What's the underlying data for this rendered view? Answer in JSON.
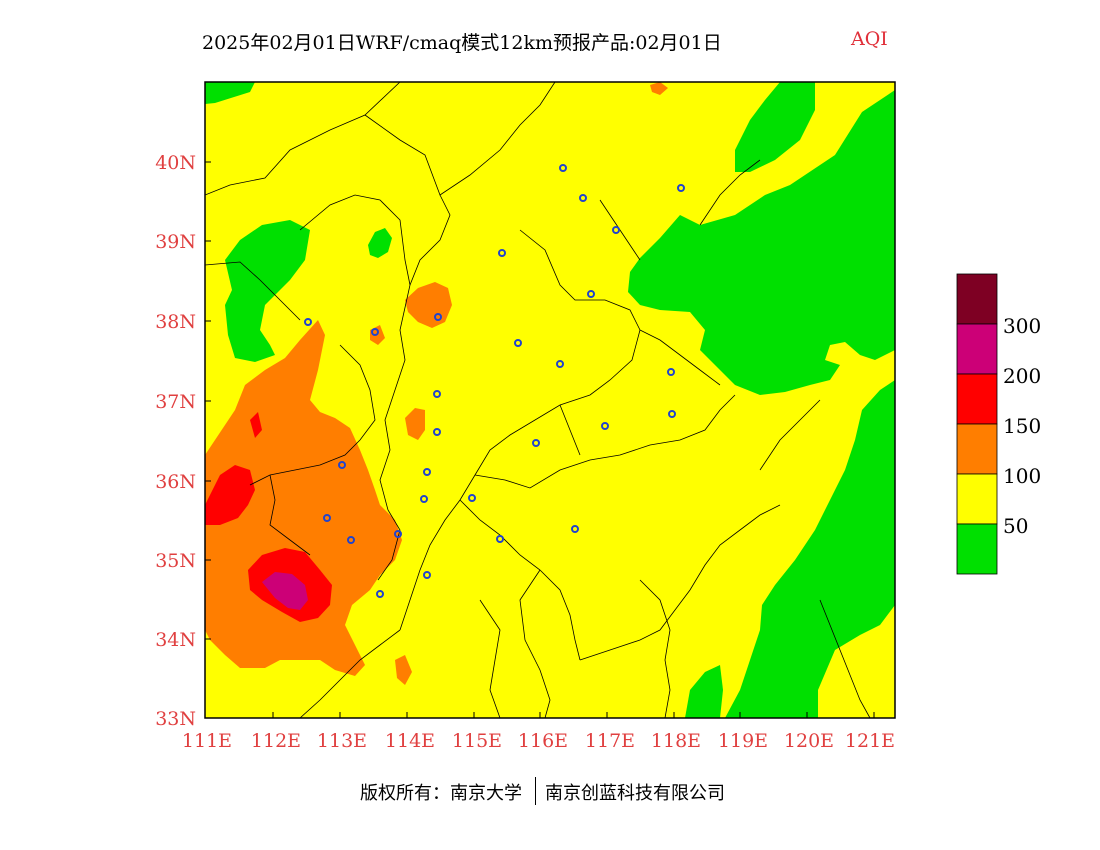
{
  "title": {
    "main": "2025年02月01日WRF/cmaq模式12km预报产品:02月01日",
    "variable": "AQI"
  },
  "map": {
    "x_axis_labels": [
      "111E",
      "112E",
      "113E",
      "114E",
      "115E",
      "116E",
      "117E",
      "118E",
      "119E",
      "120E",
      "121E"
    ],
    "y_axis_labels": [
      "33N",
      "34N",
      "35N",
      "36N",
      "37N",
      "38N",
      "39N",
      "40N"
    ],
    "lon_range": [
      111,
      121.4
    ],
    "lat_range": [
      33,
      41
    ]
  },
  "legend": {
    "labels": [
      "50",
      "100",
      "150",
      "200",
      "300"
    ],
    "colors": {
      "good": "#00e000",
      "moderate": "#ffff00",
      "sensitive": "#ff7e00",
      "unhealthy": "#ff0000",
      "very_unhealthy": "#cc0077",
      "hazardous": "#7e0023"
    }
  },
  "footer": {
    "copyright": "版权所有：南京大学",
    "company": "南京创蓝科技有限公司"
  }
}
